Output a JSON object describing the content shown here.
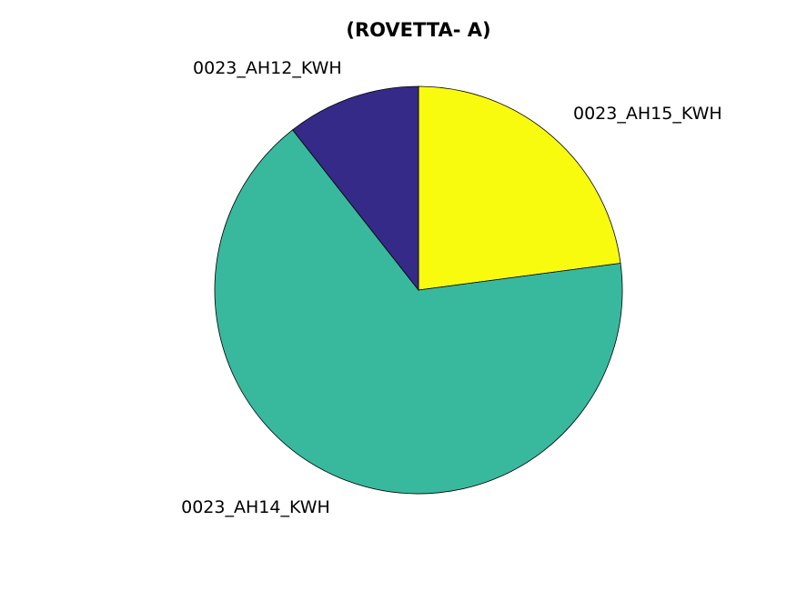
{
  "chart_data": {
    "type": "pie",
    "title": "(ROVETTA- A)",
    "start_angle_deg": 90,
    "direction": "clockwise",
    "slices": [
      {
        "label": "0023_AH15_KWH",
        "value": 22.9,
        "color": "#f9fb0e"
      },
      {
        "label": "0023_AH14_KWH",
        "value": 66.5,
        "color": "#38b99e"
      },
      {
        "label": "0023_AH12_KWH",
        "value": 10.6,
        "color": "#352a87"
      }
    ]
  }
}
